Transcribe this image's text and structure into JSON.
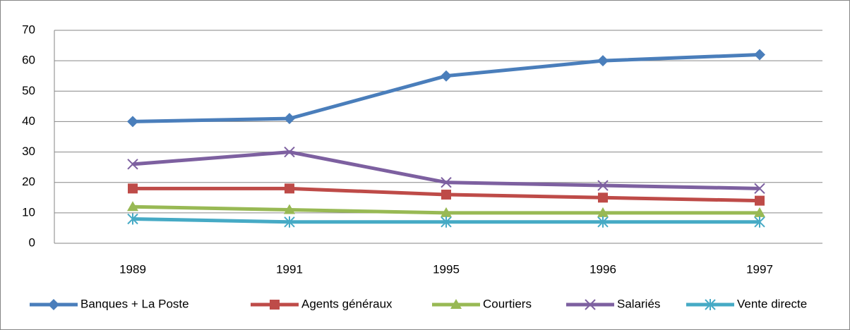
{
  "chart_data": {
    "type": "line",
    "categories": [
      "1989",
      "1991",
      "1995",
      "1996",
      "1997"
    ],
    "series": [
      {
        "name": "Banques + La Poste",
        "color": "#4a7ebb",
        "marker": "diamond",
        "values": [
          40,
          41,
          55,
          60,
          62
        ]
      },
      {
        "name": "Agents généraux",
        "color": "#be4b48",
        "marker": "square",
        "values": [
          18,
          18,
          16,
          15,
          14
        ]
      },
      {
        "name": "Courtiers",
        "color": "#98b954",
        "marker": "triangle",
        "values": [
          12,
          11,
          10,
          10,
          10
        ]
      },
      {
        "name": "Salariés",
        "color": "#7d60a0",
        "marker": "x",
        "values": [
          26,
          30,
          20,
          19,
          18
        ]
      },
      {
        "name": "Vente directe",
        "color": "#46aac5",
        "marker": "asterisk",
        "values": [
          8,
          7,
          7,
          7,
          7
        ]
      }
    ],
    "ylim": [
      0,
      70
    ],
    "yticks": [
      0,
      10,
      20,
      30,
      40,
      50,
      60,
      70
    ],
    "grid": true,
    "legend": "bottom"
  }
}
